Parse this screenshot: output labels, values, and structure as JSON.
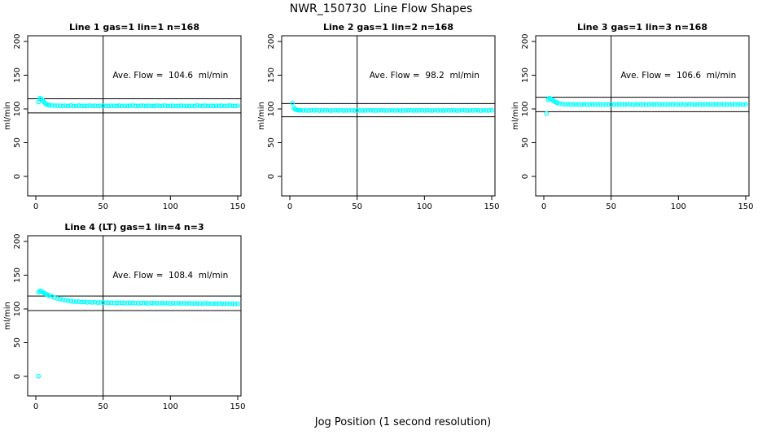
{
  "title": "NWR_150730  Line Flow Shapes",
  "xlabel": "Jog Position (1 second resolution)",
  "colors": {
    "points": "#00FFFF",
    "axis": "#000000",
    "background": "#FFFFFF"
  },
  "marker": "open-circle",
  "chart_data": [
    {
      "type": "scatter",
      "title": "Line 1 gas=1 lin=1 n=168",
      "annotation": "Ave. Flow =  104.6  ml/min",
      "annotation_xy": [
        100,
        150
      ],
      "ave_flow": 104.6,
      "ylabel": "ml/min",
      "xlim": [
        0,
        150
      ],
      "ylim": [
        0,
        200
      ],
      "x_ticks": [
        0,
        50,
        100,
        150
      ],
      "y_ticks": [
        0,
        50,
        100,
        150,
        200
      ],
      "vline_x": 50,
      "hlines": [
        115.1,
        94.1
      ],
      "points": [
        [
          2,
          110.3
        ],
        [
          3,
          115.8
        ],
        [
          4,
          115.2
        ],
        [
          5,
          112.6
        ],
        [
          6,
          110.1
        ],
        [
          7,
          108.2
        ],
        [
          8,
          106.9
        ],
        [
          9,
          106.0
        ],
        [
          10,
          105.5
        ],
        [
          12,
          105.0
        ],
        [
          14,
          104.8
        ],
        [
          16,
          104.7
        ],
        [
          18,
          104.8
        ],
        [
          20,
          104.4
        ],
        [
          22,
          104.7
        ],
        [
          24,
          104.5
        ],
        [
          26,
          104.9
        ],
        [
          28,
          104.3
        ],
        [
          30,
          104.6
        ],
        [
          32,
          104.8
        ],
        [
          34,
          104.4
        ],
        [
          36,
          104.6
        ],
        [
          38,
          104.5
        ],
        [
          40,
          104.9
        ],
        [
          42,
          104.4
        ],
        [
          44,
          104.7
        ],
        [
          46,
          104.3
        ],
        [
          48,
          104.6
        ],
        [
          50,
          104.8
        ],
        [
          52,
          104.5
        ],
        [
          54,
          104.4
        ],
        [
          56,
          104.7
        ],
        [
          58,
          104.6
        ],
        [
          60,
          104.3
        ],
        [
          62,
          104.8
        ],
        [
          64,
          104.5
        ],
        [
          66,
          104.7
        ],
        [
          68,
          104.4
        ],
        [
          70,
          104.6
        ],
        [
          72,
          104.9
        ],
        [
          74,
          104.3
        ],
        [
          76,
          104.5
        ],
        [
          78,
          104.8
        ],
        [
          80,
          104.6
        ],
        [
          82,
          104.4
        ],
        [
          84,
          104.7
        ],
        [
          86,
          104.5
        ],
        [
          88,
          104.3
        ],
        [
          90,
          104.8
        ],
        [
          92,
          104.6
        ],
        [
          94,
          104.5
        ],
        [
          96,
          104.9
        ],
        [
          98,
          104.4
        ],
        [
          100,
          104.6
        ],
        [
          102,
          104.7
        ],
        [
          104,
          104.3
        ],
        [
          106,
          104.5
        ],
        [
          108,
          104.8
        ],
        [
          110,
          104.4
        ],
        [
          112,
          104.6
        ],
        [
          114,
          104.5
        ],
        [
          116,
          104.7
        ],
        [
          118,
          104.3
        ],
        [
          120,
          104.9
        ],
        [
          122,
          104.6
        ],
        [
          124,
          104.4
        ],
        [
          126,
          104.8
        ],
        [
          128,
          104.5
        ],
        [
          130,
          104.6
        ],
        [
          132,
          104.3
        ],
        [
          134,
          104.7
        ],
        [
          136,
          104.5
        ],
        [
          138,
          104.8
        ],
        [
          140,
          104.4
        ],
        [
          142,
          104.6
        ],
        [
          144,
          104.9
        ],
        [
          146,
          104.5
        ],
        [
          148,
          104.3
        ],
        [
          150,
          104.7
        ]
      ]
    },
    {
      "type": "scatter",
      "title": "Line 2 gas=1 lin=2 n=168",
      "annotation": "Ave. Flow =  98.2  ml/min",
      "annotation_xy": [
        100,
        150
      ],
      "ave_flow": 98.2,
      "ylabel": "ml/min",
      "xlim": [
        0,
        150
      ],
      "ylim": [
        0,
        200
      ],
      "x_ticks": [
        0,
        50,
        100,
        150
      ],
      "y_ticks": [
        0,
        50,
        100,
        150,
        200
      ],
      "vline_x": 50,
      "hlines": [
        108.0,
        88.4
      ],
      "points": [
        [
          2,
          108.6
        ],
        [
          3,
          101.2
        ],
        [
          4,
          99.5
        ],
        [
          5,
          98.7
        ],
        [
          6,
          98.3
        ],
        [
          7,
          98.0
        ],
        [
          8,
          97.9
        ],
        [
          10,
          97.8
        ],
        [
          12,
          97.8
        ],
        [
          14,
          97.6
        ],
        [
          16,
          97.9
        ],
        [
          18,
          97.7
        ],
        [
          20,
          98.0
        ],
        [
          22,
          97.6
        ],
        [
          24,
          97.8
        ],
        [
          26,
          97.7
        ],
        [
          28,
          97.9
        ],
        [
          30,
          97.6
        ],
        [
          32,
          97.8
        ],
        [
          34,
          98.0
        ],
        [
          36,
          97.7
        ],
        [
          38,
          97.9
        ],
        [
          40,
          97.6
        ],
        [
          42,
          97.8
        ],
        [
          44,
          97.7
        ],
        [
          46,
          98.0
        ],
        [
          48,
          97.6
        ],
        [
          50,
          97.9
        ],
        [
          52,
          97.8
        ],
        [
          54,
          97.6
        ],
        [
          56,
          97.7
        ],
        [
          58,
          97.9
        ],
        [
          60,
          98.0
        ],
        [
          62,
          97.7
        ],
        [
          64,
          97.6
        ],
        [
          66,
          97.8
        ],
        [
          68,
          97.9
        ],
        [
          70,
          97.7
        ],
        [
          72,
          97.6
        ],
        [
          74,
          98.0
        ],
        [
          76,
          97.8
        ],
        [
          78,
          97.7
        ],
        [
          80,
          97.9
        ],
        [
          82,
          97.6
        ],
        [
          84,
          97.8
        ],
        [
          86,
          97.7
        ],
        [
          88,
          98.0
        ],
        [
          90,
          97.9
        ],
        [
          92,
          97.6
        ],
        [
          94,
          97.8
        ],
        [
          96,
          97.7
        ],
        [
          98,
          97.9
        ],
        [
          100,
          97.6
        ],
        [
          102,
          98.0
        ],
        [
          104,
          97.8
        ],
        [
          106,
          97.6
        ],
        [
          108,
          97.9
        ],
        [
          110,
          97.7
        ],
        [
          112,
          97.8
        ],
        [
          114,
          97.6
        ],
        [
          116,
          98.0
        ],
        [
          118,
          97.7
        ],
        [
          120,
          97.9
        ],
        [
          122,
          97.8
        ],
        [
          124,
          97.6
        ],
        [
          126,
          97.7
        ],
        [
          128,
          98.0
        ],
        [
          130,
          97.9
        ],
        [
          132,
          97.6
        ],
        [
          134,
          97.8
        ],
        [
          136,
          97.7
        ],
        [
          138,
          97.9
        ],
        [
          140,
          97.8
        ],
        [
          142,
          97.6
        ],
        [
          144,
          98.0
        ],
        [
          146,
          97.7
        ],
        [
          148,
          97.8
        ],
        [
          150,
          97.9
        ]
      ]
    },
    {
      "type": "scatter",
      "title": "Line 3 gas=1 lin=3 n=168",
      "annotation": "Ave. Flow =  106.6  ml/min",
      "annotation_xy": [
        100,
        150
      ],
      "ave_flow": 106.6,
      "ylabel": "ml/min",
      "xlim": [
        0,
        150
      ],
      "ylim": [
        0,
        200
      ],
      "x_ticks": [
        0,
        50,
        100,
        150
      ],
      "y_ticks": [
        0,
        50,
        100,
        150,
        200
      ],
      "vline_x": 50,
      "hlines": [
        117.3,
        95.9
      ],
      "points": [
        [
          2,
          93.2
        ],
        [
          3,
          113.8
        ],
        [
          4,
          116.0
        ],
        [
          5,
          115.3
        ],
        [
          6,
          113.9
        ],
        [
          7,
          112.4
        ],
        [
          8,
          111.0
        ],
        [
          9,
          109.9
        ],
        [
          10,
          109.0
        ],
        [
          12,
          107.9
        ],
        [
          14,
          107.3
        ],
        [
          16,
          106.9
        ],
        [
          18,
          106.7
        ],
        [
          20,
          106.6
        ],
        [
          22,
          106.8
        ],
        [
          24,
          106.5
        ],
        [
          26,
          106.7
        ],
        [
          28,
          106.4
        ],
        [
          30,
          106.9
        ],
        [
          32,
          106.6
        ],
        [
          34,
          106.5
        ],
        [
          36,
          106.8
        ],
        [
          38,
          106.6
        ],
        [
          40,
          106.7
        ],
        [
          42,
          106.4
        ],
        [
          44,
          106.8
        ],
        [
          46,
          106.5
        ],
        [
          48,
          106.6
        ],
        [
          50,
          106.9
        ],
        [
          52,
          106.4
        ],
        [
          54,
          106.7
        ],
        [
          56,
          106.6
        ],
        [
          58,
          106.8
        ],
        [
          60,
          106.5
        ],
        [
          62,
          106.7
        ],
        [
          64,
          106.9
        ],
        [
          66,
          106.4
        ],
        [
          68,
          106.6
        ],
        [
          70,
          106.8
        ],
        [
          72,
          106.5
        ],
        [
          74,
          106.7
        ],
        [
          76,
          106.4
        ],
        [
          78,
          106.6
        ],
        [
          80,
          106.9
        ],
        [
          82,
          106.5
        ],
        [
          84,
          106.8
        ],
        [
          86,
          106.6
        ],
        [
          88,
          106.4
        ],
        [
          90,
          106.7
        ],
        [
          92,
          106.5
        ],
        [
          94,
          106.9
        ],
        [
          96,
          106.6
        ],
        [
          98,
          106.8
        ],
        [
          100,
          106.4
        ],
        [
          102,
          106.7
        ],
        [
          104,
          106.6
        ],
        [
          106,
          106.5
        ],
        [
          108,
          106.8
        ],
        [
          110,
          106.9
        ],
        [
          112,
          106.4
        ],
        [
          114,
          106.6
        ],
        [
          116,
          106.7
        ],
        [
          118,
          106.5
        ],
        [
          120,
          106.8
        ],
        [
          122,
          106.4
        ],
        [
          124,
          106.9
        ],
        [
          126,
          106.6
        ],
        [
          128,
          106.5
        ],
        [
          130,
          106.7
        ],
        [
          132,
          106.8
        ],
        [
          134,
          106.4
        ],
        [
          136,
          106.6
        ],
        [
          138,
          106.9
        ],
        [
          140,
          106.5
        ],
        [
          142,
          106.7
        ],
        [
          144,
          106.6
        ],
        [
          146,
          106.8
        ],
        [
          148,
          106.4
        ],
        [
          150,
          106.7
        ]
      ]
    },
    {
      "type": "scatter",
      "title": "Line 4 (LT) gas=1 lin=4 n=3",
      "annotation": "Ave. Flow =  108.4  ml/min",
      "annotation_xy": [
        100,
        150
      ],
      "ave_flow": 108.4,
      "ylabel": "ml/min",
      "xlim": [
        0,
        150
      ],
      "ylim": [
        0,
        200
      ],
      "x_ticks": [
        0,
        50,
        100,
        150
      ],
      "y_ticks": [
        0,
        50,
        100,
        150,
        200
      ],
      "vline_x": 50,
      "hlines": [
        119.2,
        97.6
      ],
      "points": [
        [
          2,
          0.4
        ],
        [
          2,
          124.6
        ],
        [
          3,
          126.8
        ],
        [
          4,
          125.9
        ],
        [
          5,
          124.7
        ],
        [
          6,
          123.6
        ],
        [
          7,
          122.6
        ],
        [
          8,
          121.6
        ],
        [
          9,
          120.7
        ],
        [
          10,
          119.9
        ],
        [
          12,
          118.3
        ],
        [
          14,
          116.9
        ],
        [
          16,
          115.7
        ],
        [
          18,
          114.6
        ],
        [
          20,
          113.7
        ],
        [
          22,
          112.9
        ],
        [
          24,
          112.2
        ],
        [
          26,
          111.6
        ],
        [
          28,
          111.1
        ],
        [
          30,
          110.7
        ],
        [
          32,
          110.9
        ],
        [
          34,
          110.2
        ],
        [
          36,
          110.5
        ],
        [
          38,
          109.8
        ],
        [
          40,
          110.1
        ],
        [
          42,
          109.6
        ],
        [
          44,
          110.0
        ],
        [
          46,
          109.4
        ],
        [
          48,
          109.8
        ],
        [
          50,
          109.3
        ],
        [
          52,
          109.6
        ],
        [
          54,
          108.9
        ],
        [
          56,
          109.4
        ],
        [
          58,
          108.7
        ],
        [
          60,
          109.2
        ],
        [
          62,
          108.5
        ],
        [
          64,
          109.3
        ],
        [
          66,
          108.8
        ],
        [
          68,
          108.4
        ],
        [
          70,
          109.1
        ],
        [
          72,
          108.6
        ],
        [
          74,
          108.9
        ],
        [
          76,
          108.3
        ],
        [
          78,
          109.0
        ],
        [
          80,
          108.5
        ],
        [
          82,
          108.8
        ],
        [
          84,
          108.2
        ],
        [
          86,
          108.9
        ],
        [
          88,
          108.4
        ],
        [
          90,
          108.7
        ],
        [
          92,
          108.1
        ],
        [
          94,
          108.8
        ],
        [
          96,
          108.3
        ],
        [
          98,
          108.6
        ],
        [
          100,
          108.0
        ],
        [
          102,
          108.7
        ],
        [
          104,
          108.2
        ],
        [
          106,
          108.5
        ],
        [
          108,
          107.9
        ],
        [
          110,
          108.4
        ],
        [
          112,
          108.0
        ],
        [
          114,
          108.6
        ],
        [
          116,
          107.8
        ],
        [
          118,
          108.3
        ],
        [
          120,
          107.9
        ],
        [
          122,
          108.2
        ],
        [
          124,
          107.7
        ],
        [
          126,
          108.4
        ],
        [
          128,
          107.8
        ],
        [
          130,
          108.1
        ],
        [
          132,
          107.6
        ],
        [
          134,
          108.2
        ],
        [
          136,
          107.7
        ],
        [
          138,
          108.0
        ],
        [
          140,
          107.5
        ],
        [
          142,
          107.9
        ],
        [
          144,
          107.4
        ],
        [
          146,
          107.8
        ],
        [
          148,
          107.3
        ],
        [
          150,
          107.6
        ]
      ]
    }
  ]
}
